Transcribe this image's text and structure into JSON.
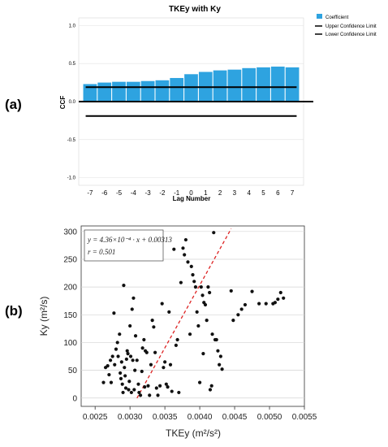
{
  "panels": {
    "a_label": "(a)",
    "b_label": "(b)"
  },
  "chart_data": [
    {
      "type": "bar",
      "title": "TKEy with Ky",
      "xlabel": "Lag Number",
      "ylabel": "CCF",
      "categories": [
        "-7",
        "-6",
        "-5",
        "-4",
        "-3",
        "-2",
        "-1",
        "0",
        "1",
        "2",
        "3",
        "4",
        "5",
        "6",
        "7"
      ],
      "series": [
        {
          "name": "Coefficient",
          "values": [
            0.23,
            0.25,
            0.26,
            0.26,
            0.27,
            0.28,
            0.31,
            0.36,
            0.39,
            0.41,
            0.42,
            0.44,
            0.45,
            0.46,
            0.45
          ]
        }
      ],
      "upper_confidence_limit": 0.19,
      "lower_confidence_limit": -0.19,
      "legend": [
        "Coefficient",
        "Upper Confidence Limit",
        "Lower Confidence Limit"
      ],
      "legend_position": "top-right",
      "ylim": [
        -1.1,
        1.1
      ],
      "yticks": [
        "-1.0",
        "-0.5",
        "0.0",
        "0.5",
        "1.0"
      ],
      "grid": true,
      "colors": {
        "bar": "#2ea3e0",
        "limit": "#000000"
      }
    },
    {
      "type": "scatter",
      "xlabel": "TKEy (m²/s²)",
      "ylabel": "Ky (m²/s)",
      "xlim": [
        0.0023,
        0.0055
      ],
      "ylim": [
        -15,
        310
      ],
      "xticks": [
        "0.0025",
        "0.0030",
        "0.0035",
        "0.0040",
        "0.0045",
        "0.0050",
        "0.0055"
      ],
      "yticks": [
        "0",
        "50",
        "100",
        "150",
        "200",
        "250",
        "300"
      ],
      "grid": true,
      "annotation": {
        "equation": "y = 4.36×10⁻⁴ · x + 0.00313",
        "r": "r = 0.501"
      },
      "fit_line": {
        "x": [
          0.0031,
          0.00445
        ],
        "y": [
          0,
          305
        ],
        "color": "#dd2222",
        "style": "dashed"
      },
      "points": [
        [
          0.00262,
          28
        ],
        [
          0.00265,
          55
        ],
        [
          0.00268,
          58
        ],
        [
          0.0027,
          42
        ],
        [
          0.00272,
          68
        ],
        [
          0.00273,
          28
        ],
        [
          0.00275,
          75
        ],
        [
          0.00277,
          153
        ],
        [
          0.00278,
          60
        ],
        [
          0.0028,
          88
        ],
        [
          0.00282,
          100
        ],
        [
          0.00283,
          75
        ],
        [
          0.00285,
          115
        ],
        [
          0.00286,
          45
        ],
        [
          0.00287,
          35
        ],
        [
          0.00288,
          65
        ],
        [
          0.00289,
          25
        ],
        [
          0.0029,
          10
        ],
        [
          0.00291,
          203
        ],
        [
          0.00292,
          55
        ],
        [
          0.00293,
          40
        ],
        [
          0.00294,
          18
        ],
        [
          0.00295,
          70
        ],
        [
          0.00296,
          85
        ],
        [
          0.00297,
          80
        ],
        [
          0.00298,
          15
        ],
        [
          0.00299,
          30
        ],
        [
          0.003,
          130
        ],
        [
          0.00301,
          75
        ],
        [
          0.00302,
          10
        ],
        [
          0.00303,
          160
        ],
        [
          0.00304,
          68
        ],
        [
          0.00305,
          180
        ],
        [
          0.00306,
          15
        ],
        [
          0.00307,
          50
        ],
        [
          0.00308,
          112
        ],
        [
          0.0031,
          68
        ],
        [
          0.00312,
          25
        ],
        [
          0.00313,
          10
        ],
        [
          0.00315,
          5
        ],
        [
          0.00317,
          48
        ],
        [
          0.00318,
          90
        ],
        [
          0.0032,
          105
        ],
        [
          0.00321,
          20
        ],
        [
          0.00322,
          85
        ],
        [
          0.00324,
          82
        ],
        [
          0.00326,
          22
        ],
        [
          0.00328,
          5
        ],
        [
          0.0033,
          60
        ],
        [
          0.00332,
          140
        ],
        [
          0.00334,
          128
        ],
        [
          0.00336,
          82
        ],
        [
          0.00338,
          18
        ],
        [
          0.0034,
          5
        ],
        [
          0.00343,
          22
        ],
        [
          0.00346,
          170
        ],
        [
          0.00348,
          55
        ],
        [
          0.0035,
          65
        ],
        [
          0.00352,
          25
        ],
        [
          0.00354,
          20
        ],
        [
          0.00356,
          155
        ],
        [
          0.00358,
          60
        ],
        [
          0.0036,
          12
        ],
        [
          0.00363,
          268
        ],
        [
          0.00366,
          95
        ],
        [
          0.00368,
          105
        ],
        [
          0.0037,
          10
        ],
        [
          0.00373,
          208
        ],
        [
          0.00376,
          270
        ],
        [
          0.00378,
          258
        ],
        [
          0.0038,
          285
        ],
        [
          0.00383,
          245
        ],
        [
          0.00386,
          115
        ],
        [
          0.00388,
          237
        ],
        [
          0.0039,
          222
        ],
        [
          0.00392,
          210
        ],
        [
          0.00394,
          200
        ],
        [
          0.00396,
          155
        ],
        [
          0.00398,
          130
        ],
        [
          0.004,
          28
        ],
        [
          0.00402,
          200
        ],
        [
          0.00404,
          185
        ],
        [
          0.00405,
          80
        ],
        [
          0.00406,
          172
        ],
        [
          0.00408,
          168
        ],
        [
          0.0041,
          140
        ],
        [
          0.00412,
          200
        ],
        [
          0.00414,
          190
        ],
        [
          0.00415,
          15
        ],
        [
          0.00417,
          22
        ],
        [
          0.00418,
          115
        ],
        [
          0.0042,
          298
        ],
        [
          0.00422,
          105
        ],
        [
          0.00424,
          105
        ],
        [
          0.00426,
          85
        ],
        [
          0.00428,
          60
        ],
        [
          0.0043,
          75
        ],
        [
          0.00432,
          52
        ],
        [
          0.00445,
          193
        ],
        [
          0.00448,
          140
        ],
        [
          0.00455,
          150
        ],
        [
          0.0046,
          160
        ],
        [
          0.00465,
          168
        ],
        [
          0.00475,
          192
        ],
        [
          0.00485,
          170
        ],
        [
          0.00495,
          170
        ],
        [
          0.00505,
          170
        ],
        [
          0.00508,
          172
        ],
        [
          0.00512,
          178
        ],
        [
          0.00516,
          190
        ],
        [
          0.0052,
          180
        ]
      ],
      "colors": {
        "point": "#111111"
      }
    }
  ]
}
